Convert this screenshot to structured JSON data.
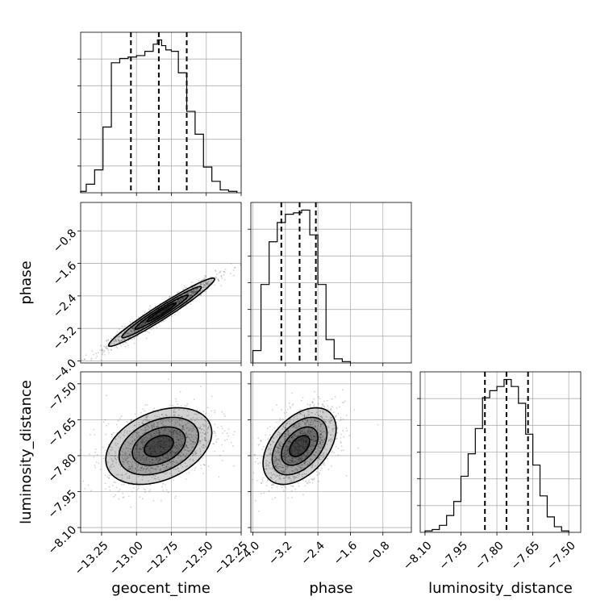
{
  "chart_data": {
    "type": "corner",
    "parameters": [
      {
        "name": "geocent_time",
        "label": "geocent_time",
        "range": [
          -13.4,
          -12.25
        ],
        "ticks": [
          -13.25,
          -13.0,
          -12.75,
          -12.5,
          -12.25
        ],
        "tick_labels": [
          "−13.25",
          "−13.00",
          "−12.75",
          "−12.50",
          "−12.25"
        ]
      },
      {
        "name": "phase",
        "label": "phase",
        "range": [
          -4.05,
          -0.1
        ],
        "ticks": [
          -4.0,
          -3.2,
          -2.4,
          -1.6,
          -0.8
        ],
        "tick_labels": [
          "−4.0",
          "−3.2",
          "−2.4",
          "−1.6",
          "−0.8"
        ]
      },
      {
        "name": "luminosity_distance",
        "label": "luminosity_distance",
        "range": [
          -8.12,
          -7.45
        ],
        "ticks": [
          -8.1,
          -7.95,
          -7.8,
          -7.65,
          -7.5
        ],
        "tick_labels": [
          "−8.10",
          "−7.95",
          "−7.80",
          "−7.65",
          "−7.50"
        ]
      }
    ],
    "diagonal": [
      {
        "param": "geocent_time",
        "quantiles": [
          -13.04,
          -12.84,
          -12.64
        ],
        "bin_edges": [
          -13.4,
          -13.36,
          -13.3,
          -13.24,
          -13.18,
          -13.12,
          -13.06,
          -13.0,
          -12.94,
          -12.88,
          -12.85,
          -12.82,
          -12.79,
          -12.75,
          -12.7,
          -12.64,
          -12.58,
          -12.52,
          -12.46,
          -12.4,
          -12.34,
          -12.28
        ],
        "counts": [
          1,
          6,
          16,
          46,
          91,
          94,
          95,
          96,
          99,
          104,
          107,
          103,
          100,
          99,
          84,
          57,
          41,
          18,
          8,
          2,
          1
        ]
      },
      {
        "param": "phase",
        "quantiles": [
          -3.3,
          -2.85,
          -2.45
        ],
        "bin_edges": [
          -4.0,
          -3.8,
          -3.6,
          -3.4,
          -3.2,
          -3.0,
          -2.8,
          -2.6,
          -2.4,
          -2.2,
          -2.0,
          -1.8,
          -1.6
        ],
        "counts": [
          9,
          57,
          88,
          102,
          108,
          109,
          111,
          93,
          57,
          17,
          3,
          1
        ]
      },
      {
        "param": "luminosity_distance",
        "quantiles": [
          -7.85,
          -7.76,
          -7.67
        ],
        "bin_edges": [
          -8.1,
          -8.07,
          -8.04,
          -8.01,
          -7.98,
          -7.95,
          -7.92,
          -7.89,
          -7.86,
          -7.83,
          -7.8,
          -7.77,
          -7.74,
          -7.71,
          -7.68,
          -7.65,
          -7.62,
          -7.59,
          -7.56,
          -7.53,
          -7.5
        ],
        "counts": [
          1,
          2,
          5,
          12,
          22,
          40,
          56,
          74,
          96,
          101,
          104,
          109,
          104,
          92,
          70,
          48,
          26,
          11,
          4,
          1
        ]
      }
    ],
    "off_diagonal": [
      {
        "x": "geocent_time",
        "y": "phase",
        "correlation": 0.97,
        "mean": [
          -12.82,
          -2.8
        ],
        "std": [
          0.19,
          0.42
        ]
      },
      {
        "x": "geocent_time",
        "y": "luminosity_distance",
        "correlation": 0.35,
        "mean": [
          -12.84,
          -7.76
        ],
        "std": [
          0.19,
          0.08
        ]
      },
      {
        "x": "phase",
        "y": "luminosity_distance",
        "correlation": 0.45,
        "mean": [
          -2.85,
          -7.76
        ],
        "std": [
          0.45,
          0.08
        ]
      }
    ],
    "grid": true,
    "colors": {
      "line": "#000000",
      "scatter": "#000000",
      "grid": "#b0b0b0"
    }
  }
}
